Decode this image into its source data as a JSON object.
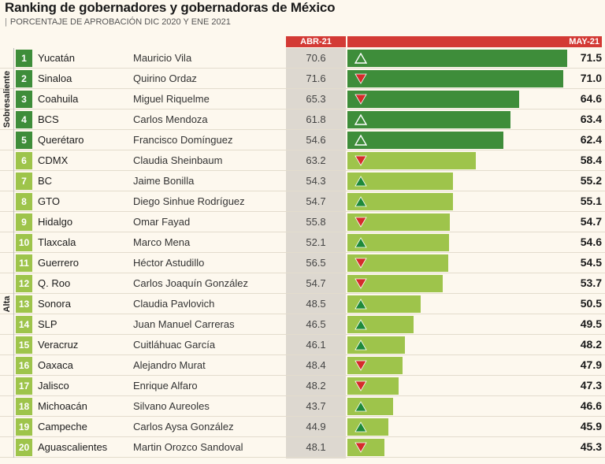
{
  "title": "Ranking de gobernadores y gobernadoras de México",
  "subtitle": "PORCENTAJE DE APROBACIÓN DIC 2020 Y ENE 2021",
  "colors": {
    "header_red": "#d33a35",
    "dark_green": "#3e8d3a",
    "light_green": "#9ec44b",
    "arrow_up": "#1e8a3a",
    "arrow_down": "#d52b2b"
  },
  "chart_data": {
    "type": "bar",
    "title": "Ranking de gobernadores y gobernadoras de México",
    "subtitle": "PORCENTAJE DE APROBACIÓN DIC 2020 Y ENE 2021",
    "columns": {
      "previous": "ABR-21",
      "current": "MAY-21"
    },
    "xlim": [
      40,
      72
    ],
    "groups": [
      {
        "label": "Sobresaliente",
        "ranks": [
          1,
          5
        ]
      },
      {
        "label": "Alta",
        "ranks": [
          6,
          20
        ]
      }
    ],
    "rows": [
      {
        "rank": "1",
        "state": "Yucatán",
        "governor": "Mauricio Vila",
        "prev": "70.6",
        "curr": 71.5,
        "label": "71.5",
        "trend": "up",
        "group": "Sobresaliente"
      },
      {
        "rank": "2",
        "state": "Sinaloa",
        "governor": "Quirino Ordaz",
        "prev": "71.6",
        "curr": 71.0,
        "label": "71.0",
        "trend": "down",
        "group": "Sobresaliente"
      },
      {
        "rank": "3",
        "state": "Coahuila",
        "governor": "Miguel Riquelme",
        "prev": "65.3",
        "curr": 64.6,
        "label": "64.6",
        "trend": "down",
        "group": "Sobresaliente"
      },
      {
        "rank": "4",
        "state": "BCS",
        "governor": "Carlos Mendoza",
        "prev": "61.8",
        "curr": 63.4,
        "label": "63.4",
        "trend": "up",
        "group": "Sobresaliente"
      },
      {
        "rank": "5",
        "state": "Querétaro",
        "governor": "Francisco Domínguez",
        "prev": "54.6",
        "curr": 62.4,
        "label": "62.4",
        "trend": "up",
        "group": "Sobresaliente"
      },
      {
        "rank": "6",
        "state": "CDMX",
        "governor": "Claudia Sheinbaum",
        "prev": "63.2",
        "curr": 58.4,
        "label": "58.4",
        "trend": "down",
        "group": "Alta"
      },
      {
        "rank": "7",
        "state": "BC",
        "governor": "Jaime Bonilla",
        "prev": "54.3",
        "curr": 55.2,
        "label": "55.2",
        "trend": "up",
        "group": "Alta"
      },
      {
        "rank": "8",
        "state": "GTO",
        "governor": "Diego Sinhue Rodríguez",
        "prev": "54.7",
        "curr": 55.1,
        "label": "55.1",
        "trend": "up",
        "group": "Alta"
      },
      {
        "rank": "9",
        "state": "Hidalgo",
        "governor": "Omar Fayad",
        "prev": "55.8",
        "curr": 54.7,
        "label": "54.7",
        "trend": "down",
        "group": "Alta"
      },
      {
        "rank": "10",
        "state": "Tlaxcala",
        "governor": "Marco Mena",
        "prev": "52.1",
        "curr": 54.6,
        "label": "54.6",
        "trend": "up",
        "group": "Alta"
      },
      {
        "rank": "11",
        "state": "Guerrero",
        "governor": "Héctor Astudillo",
        "prev": "56.5",
        "curr": 54.5,
        "label": "54.5",
        "trend": "down",
        "group": "Alta"
      },
      {
        "rank": "12",
        "state": "Q. Roo",
        "governor": "Carlos Joaquín González",
        "prev": "54.7",
        "curr": 53.7,
        "label": "53.7",
        "trend": "down",
        "group": "Alta"
      },
      {
        "rank": "13",
        "state": "Sonora",
        "governor": "Claudia Pavlovich",
        "prev": "48.5",
        "curr": 50.5,
        "label": "50.5",
        "trend": "up",
        "group": "Alta"
      },
      {
        "rank": "14",
        "state": "SLP",
        "governor": "Juan Manuel Carreras",
        "prev": "46.5",
        "curr": 49.5,
        "label": "49.5",
        "trend": "up",
        "group": "Alta"
      },
      {
        "rank": "15",
        "state": "Veracruz",
        "governor": "Cuitláhuac García",
        "prev": "46.1",
        "curr": 48.2,
        "label": "48.2",
        "trend": "up",
        "group": "Alta"
      },
      {
        "rank": "16",
        "state": "Oaxaca",
        "governor": "Alejandro Murat",
        "prev": "48.4",
        "curr": 47.9,
        "label": "47.9",
        "trend": "down",
        "group": "Alta"
      },
      {
        "rank": "17",
        "state": "Jalisco",
        "governor": "Enrique Alfaro",
        "prev": "48.2",
        "curr": 47.3,
        "label": "47.3",
        "trend": "down",
        "group": "Alta"
      },
      {
        "rank": "18",
        "state": "Michoacán",
        "governor": "Silvano Aureoles",
        "prev": "43.7",
        "curr": 46.6,
        "label": "46.6",
        "trend": "up",
        "group": "Alta"
      },
      {
        "rank": "19",
        "state": "Campeche",
        "governor": "Carlos Aysa González",
        "prev": "44.9",
        "curr": 45.9,
        "label": "45.9",
        "trend": "up",
        "group": "Alta"
      },
      {
        "rank": "20",
        "state": "Aguascalientes",
        "governor": "Martin Orozco Sandoval",
        "prev": "48.1",
        "curr": 45.3,
        "label": "45.3",
        "trend": "down",
        "group": "Alta"
      }
    ]
  }
}
